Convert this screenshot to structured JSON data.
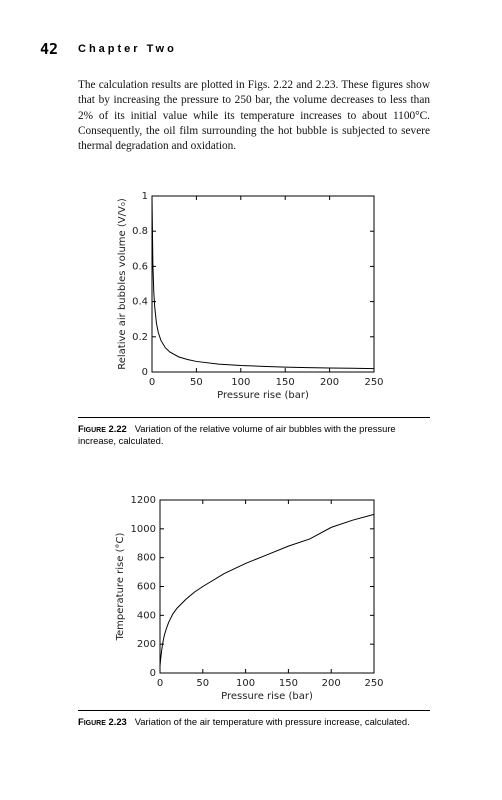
{
  "header": {
    "page_number": "42",
    "chapter": "Chapter Two"
  },
  "body": "The calculation results are plotted in Figs. 2.22 and 2.23. These figures show that by increasing the pressure to 250 bar, the volume decreases to less than 2% of its initial value while its temperature increases to about 1100°C. Consequently, the oil film surrounding the hot bubble is subjected to severe thermal degradation and oxidation.",
  "chart_data": [
    {
      "type": "line",
      "x_label": "Pressure rise (bar)",
      "y_label": "Relative air bubbles volume (V/V₀)",
      "x": [
        0,
        1,
        2,
        3,
        5,
        7,
        10,
        15,
        20,
        30,
        40,
        50,
        75,
        100,
        125,
        150,
        175,
        200,
        225,
        250
      ],
      "series": [
        {
          "color": "#000000",
          "values": [
            1,
            0.61,
            0.456,
            0.372,
            0.278,
            0.226,
            0.18,
            0.138,
            0.114,
            0.086,
            0.071,
            0.06,
            0.045,
            0.037,
            0.032,
            0.028,
            0.025,
            0.023,
            0.021,
            0.019
          ]
        }
      ],
      "xlim": [
        0,
        250
      ],
      "ylim": [
        0,
        1
      ],
      "xticks": [
        0,
        50,
        100,
        150,
        200,
        250
      ],
      "yticks": [
        0,
        0.2,
        0.4,
        0.6,
        0.8,
        1
      ]
    },
    {
      "type": "line",
      "x_label": "Pressure rise (bar)",
      "y_label": "Temperature rise (°C)",
      "x": [
        0,
        1,
        2,
        3,
        5,
        7,
        10,
        15,
        20,
        30,
        40,
        50,
        75,
        100,
        125,
        150,
        175,
        200,
        225,
        250
      ],
      "series": [
        {
          "color": "#000000",
          "values": [
            50,
            110,
            160,
            200,
            260,
            300,
            350,
            410,
            450,
            510,
            560,
            600,
            690,
            760,
            820,
            880,
            930,
            1010,
            1060,
            1100
          ]
        }
      ],
      "xlim": [
        0,
        250
      ],
      "ylim": [
        0,
        1200
      ],
      "xticks": [
        0,
        50,
        100,
        150,
        200,
        250
      ],
      "yticks": [
        0,
        200,
        400,
        600,
        800,
        1000,
        1200
      ]
    }
  ],
  "captions": [
    {
      "label": "Figure 2.22",
      "text": "Variation of the relative volume of air bubbles with the pressure increase, calculated."
    },
    {
      "label": "Figure 2.23",
      "text": "Variation of the air temperature with pressure increase, calculated."
    }
  ]
}
